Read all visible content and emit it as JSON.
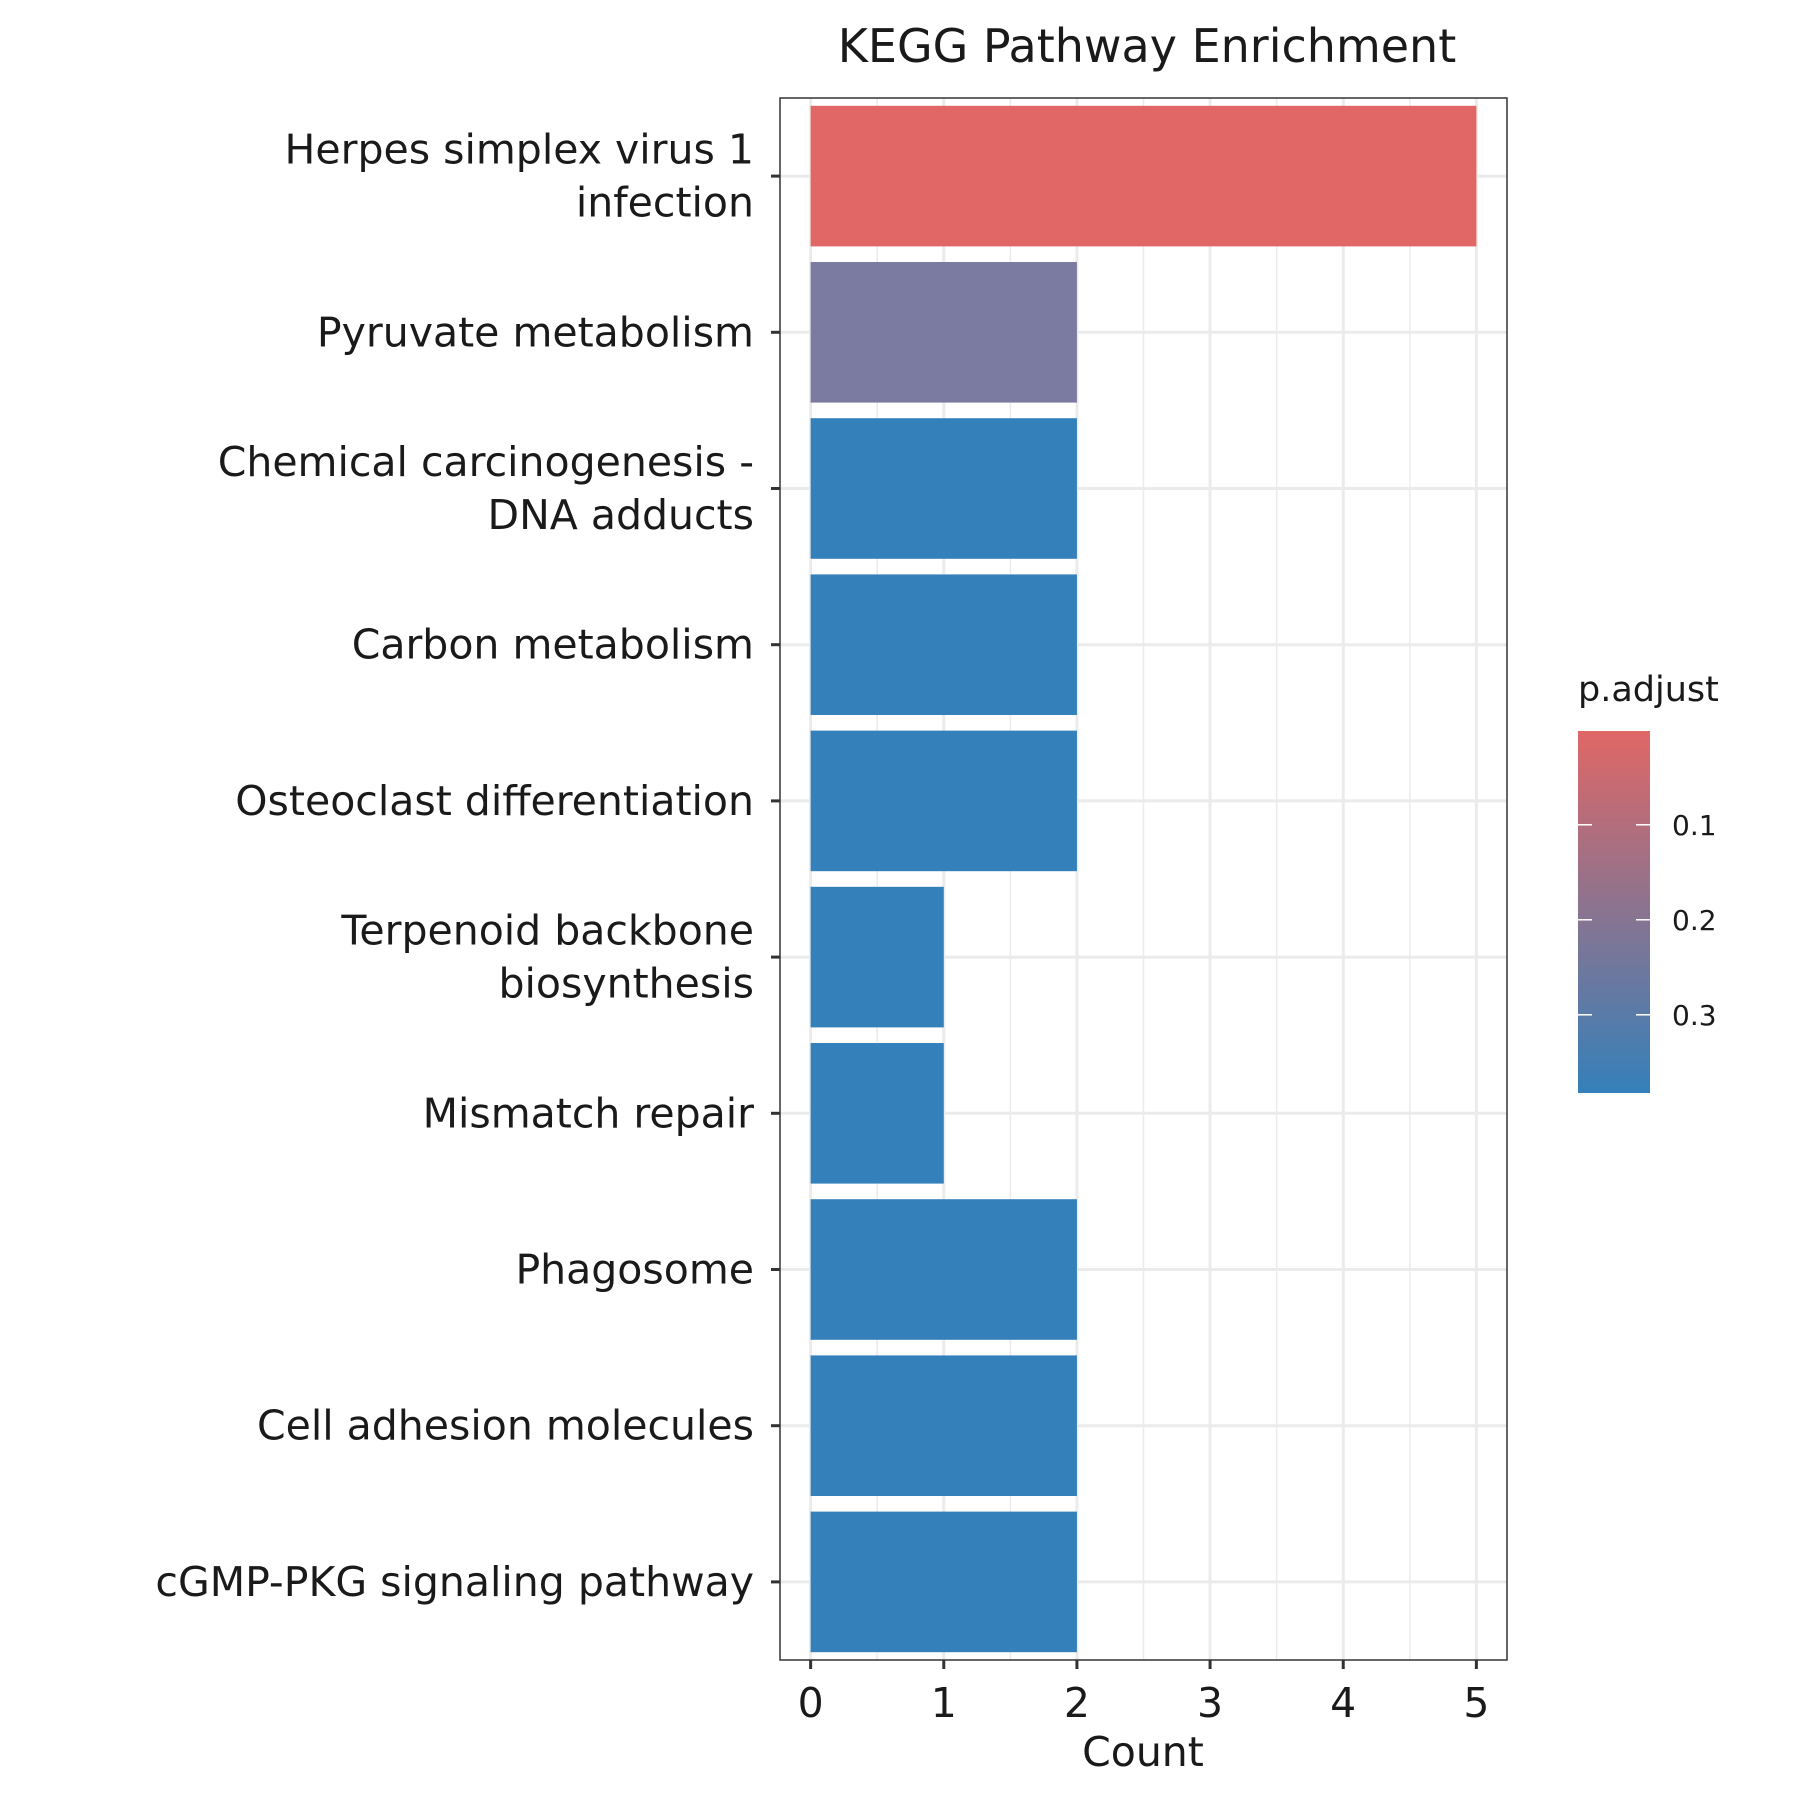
{
  "chart_data": {
    "type": "bar",
    "orientation": "horizontal",
    "title": "KEGG Pathway Enrichment",
    "xlabel": "Count",
    "ylabel": "",
    "xlim": [
      -0.23,
      5.23
    ],
    "xticks": [
      0,
      1,
      2,
      3,
      4,
      5
    ],
    "grid": true,
    "categories": [
      [
        "Herpes simplex virus 1",
        "infection"
      ],
      [
        "Pyruvate metabolism"
      ],
      [
        "Chemical carcinogenesis -",
        "DNA adducts"
      ],
      [
        "Carbon metabolism"
      ],
      [
        "Osteoclast differentiation"
      ],
      [
        "Terpenoid backbone",
        "biosynthesis"
      ],
      [
        "Mismatch repair"
      ],
      [
        "Phagosome"
      ],
      [
        "Cell adhesion molecules"
      ],
      [
        "cGMP-PKG signaling pathway"
      ]
    ],
    "values": [
      5,
      2,
      2,
      2,
      2,
      1,
      1,
      2,
      2,
      2
    ],
    "bar_colors": [
      "#E06766",
      "#7B7AA0",
      "#3480BA",
      "#3480BA",
      "#3480BA",
      "#3480BA",
      "#3480BA",
      "#3480BA",
      "#3480BA",
      "#3480BA"
    ],
    "legend": {
      "title": "p.adjust",
      "placement": "right",
      "color_high": "#E06766",
      "color_low": "#3480BA",
      "range": [
        0.0013,
        0.3823
      ],
      "ticks": [
        "0.1",
        "0.2",
        "0.3"
      ],
      "tick_values": [
        0.1,
        0.2,
        0.3
      ]
    }
  }
}
